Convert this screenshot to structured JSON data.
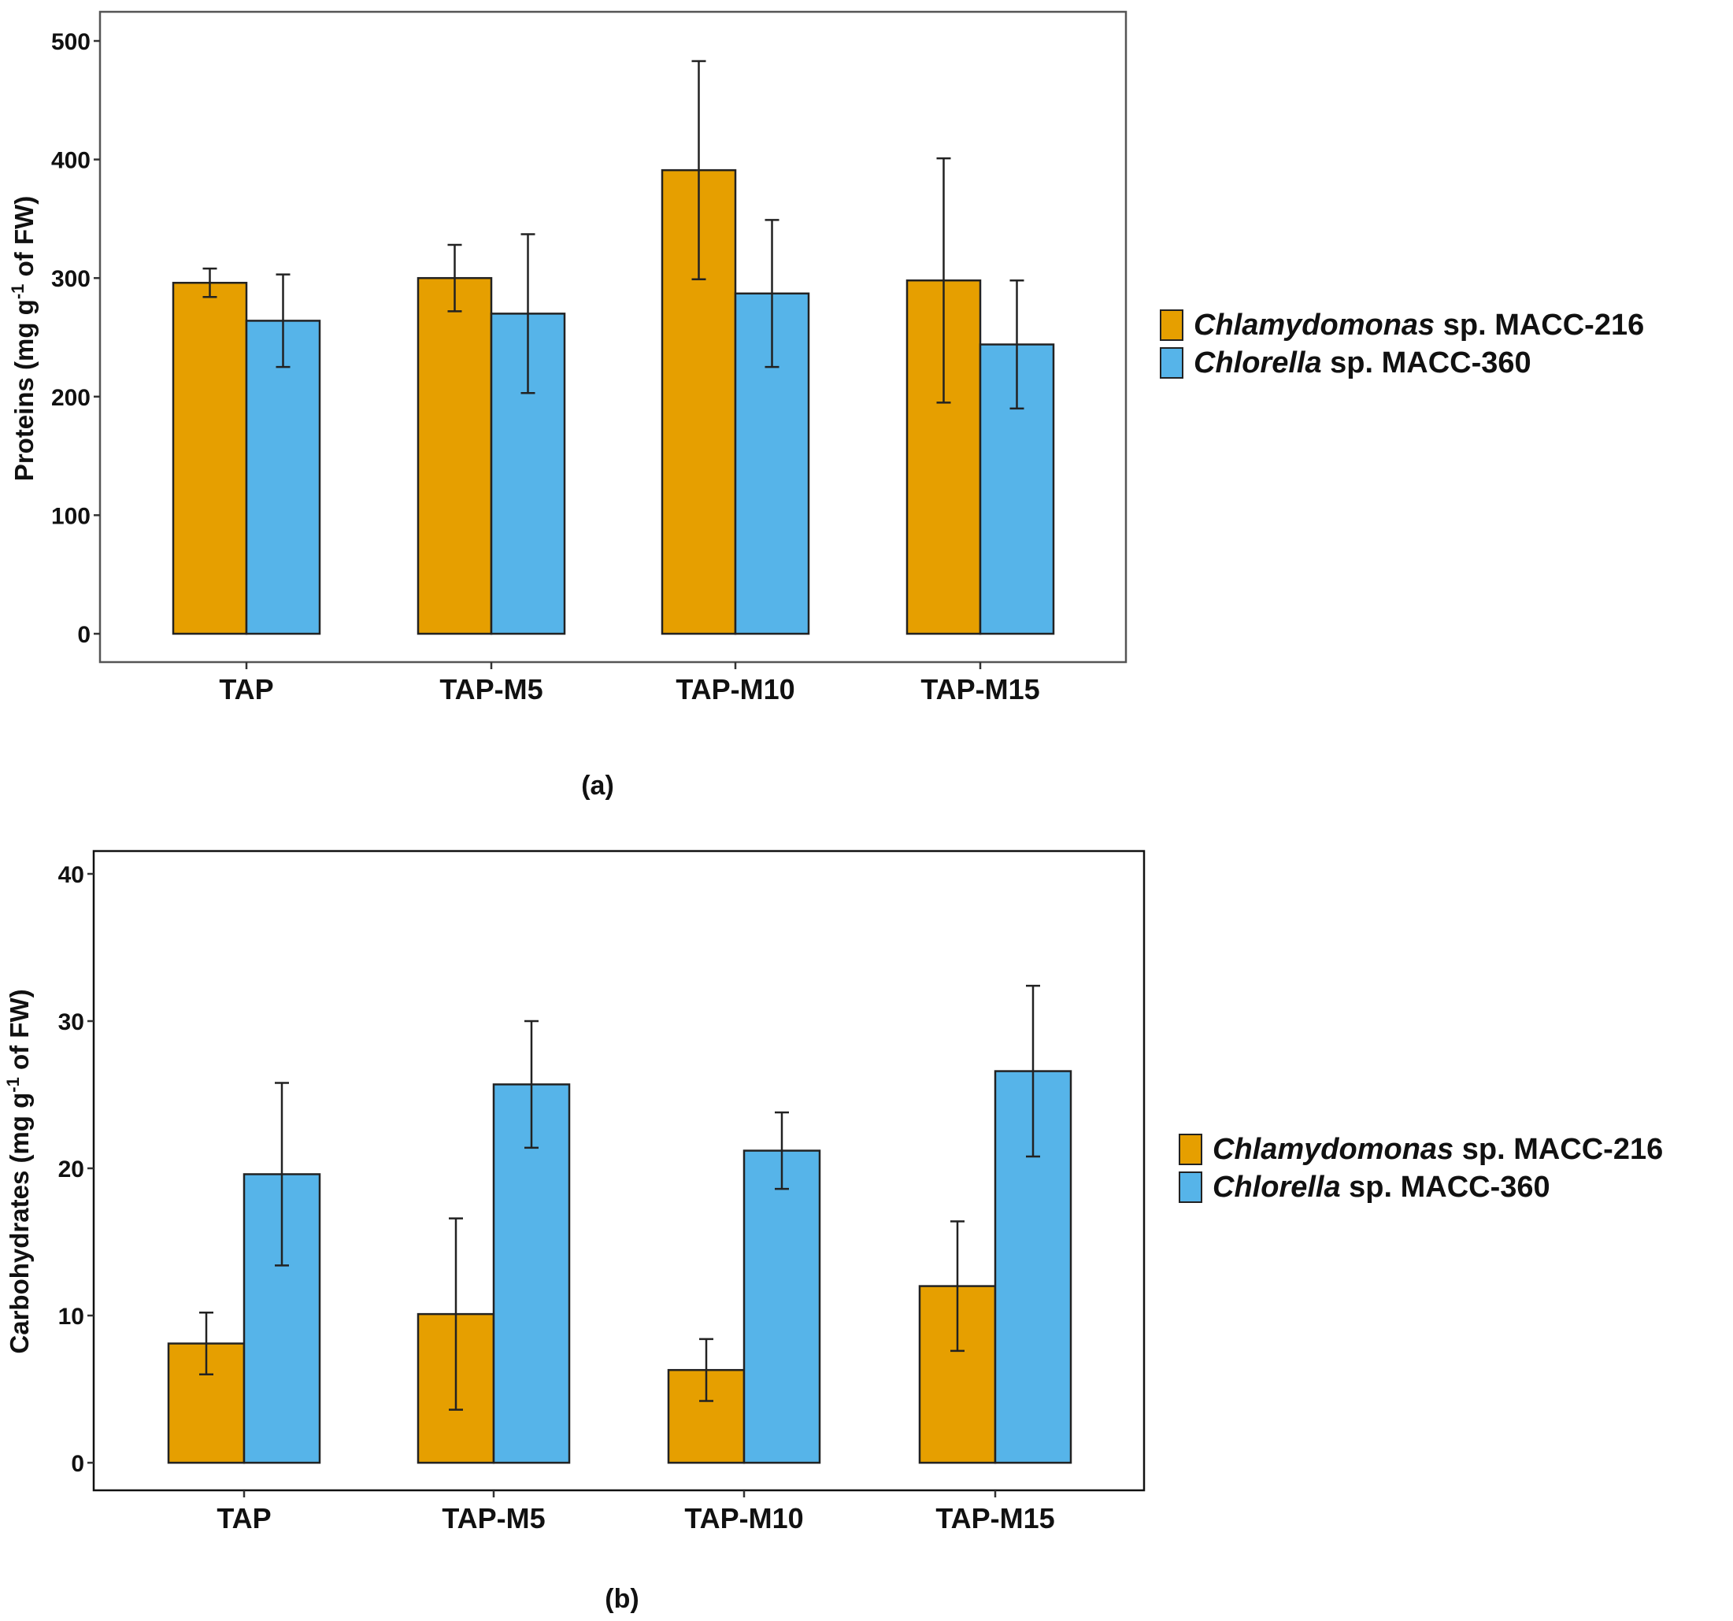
{
  "colors": {
    "series_a": "#E69F00",
    "series_b": "#56B4E9",
    "axis": "#333333",
    "frame": "#555555",
    "errorbar": "#222222"
  },
  "legend": [
    {
      "italic": "Chlamydomonas",
      "rest": " sp. MACC-216"
    },
    {
      "italic": "Chlorella",
      "rest": " sp. MACC-360"
    }
  ],
  "chart_data": [
    {
      "type": "bar",
      "panel_label": "(a)",
      "ylabel": {
        "before": "Proteins (mg g",
        "sup": "-1",
        "after": " of FW)"
      },
      "categories": [
        "TAP",
        "TAP-M5",
        "TAP-M10",
        "TAP-M15"
      ],
      "ylim": [
        0,
        500
      ],
      "yticks": [
        0,
        100,
        200,
        300,
        400,
        500
      ],
      "series": [
        {
          "name": "Chlamydomonas sp. MACC-216",
          "values": [
            296,
            300,
            391,
            298
          ],
          "err": [
            12,
            28,
            92,
            103
          ]
        },
        {
          "name": "Chlorella sp. MACC-360",
          "values": [
            264,
            270,
            287,
            244
          ],
          "err": [
            39,
            67,
            62,
            54
          ]
        }
      ]
    },
    {
      "type": "bar",
      "panel_label": "(b)",
      "ylabel": {
        "before": "Carbohydrates (mg g",
        "sup": "-1",
        "after": " of FW)"
      },
      "categories": [
        "TAP",
        "TAP-M5",
        "TAP-M10",
        "TAP-M15"
      ],
      "ylim": [
        0,
        40
      ],
      "yticks": [
        0,
        10,
        20,
        30,
        40
      ],
      "series": [
        {
          "name": "Chlamydomonas sp. MACC-216",
          "values": [
            8.1,
            10.1,
            6.3,
            12.0
          ],
          "err": [
            2.1,
            6.5,
            2.1,
            4.4
          ]
        },
        {
          "name": "Chlorella sp. MACC-360",
          "values": [
            19.6,
            25.7,
            21.2,
            26.6
          ],
          "err": [
            6.2,
            4.3,
            2.6,
            5.8
          ]
        }
      ]
    }
  ]
}
